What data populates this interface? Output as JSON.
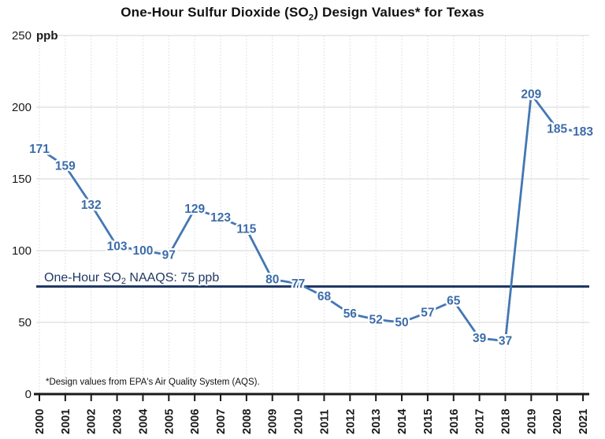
{
  "title": {
    "pre": "One-Hour Sulfur Dioxide (SO",
    "sub": "2",
    "post": ") Design Values* for Texas"
  },
  "chart_data": {
    "type": "line",
    "x": [
      "2000",
      "2001",
      "2002",
      "2003",
      "2004",
      "2005",
      "2006",
      "2007",
      "2008",
      "2009",
      "2010",
      "2011",
      "2012",
      "2013",
      "2014",
      "2015",
      "2016",
      "2017",
      "2018",
      "2019",
      "2020",
      "2021"
    ],
    "values": [
      171,
      159,
      132,
      103,
      100,
      97,
      129,
      123,
      115,
      80,
      77,
      68,
      56,
      52,
      50,
      57,
      65,
      39,
      37,
      209,
      185,
      183
    ],
    "unit_label": "ppb",
    "ylim": [
      0,
      250
    ],
    "yticks": [
      0,
      50,
      100,
      150,
      200,
      250
    ],
    "xlabel": "",
    "ylabel": "ppb",
    "grid": true,
    "legend": "none",
    "line_color": "#4377b4",
    "label_color": "#3c6ca8",
    "reference_line": {
      "value": 75,
      "color": "#1f3864",
      "label": {
        "pre": "One-Hour SO",
        "sub": "2",
        "post": " NAAQS: 75 ppb"
      }
    },
    "footnote": "*Design values from EPA's Air Quality System (AQS)."
  }
}
